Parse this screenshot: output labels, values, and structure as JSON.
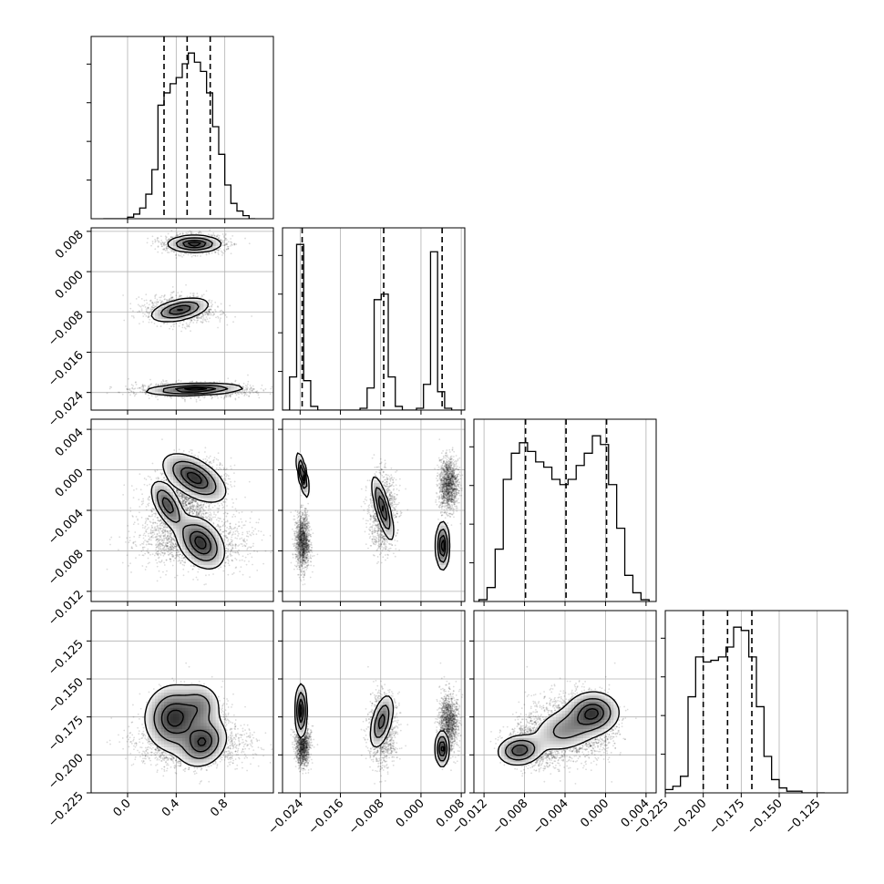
{
  "chart_data": {
    "type": "corner",
    "grid": true,
    "parameters": [
      {
        "range": [
          -0.3,
          1.2
        ],
        "ticks": [
          {
            "v": 0.0,
            "label": "0.0"
          },
          {
            "v": 0.4,
            "label": "0.4"
          },
          {
            "v": 0.8,
            "label": "0.8"
          }
        ],
        "quantiles": [
          0.3,
          0.49,
          0.68
        ]
      },
      {
        "range": [
          -0.0275,
          0.0087
        ],
        "ticks": [
          {
            "v": -0.024,
            "label": "−0.024"
          },
          {
            "v": -0.016,
            "label": "−0.016"
          },
          {
            "v": -0.008,
            "label": "−0.008"
          },
          {
            "v": 0.0,
            "label": "0.000"
          },
          {
            "v": 0.008,
            "label": "0.008"
          }
        ],
        "quantiles": [
          -0.0236,
          -0.0074,
          0.0042
        ]
      },
      {
        "range": [
          -0.013,
          0.005
        ],
        "ticks": [
          {
            "v": -0.012,
            "label": "−0.012"
          },
          {
            "v": -0.008,
            "label": "−0.008"
          },
          {
            "v": -0.004,
            "label": "−0.004"
          },
          {
            "v": 0.0,
            "label": "0.000"
          },
          {
            "v": 0.004,
            "label": "0.004"
          }
        ],
        "quantiles": [
          -0.0079,
          -0.0039,
          0.0001
        ]
      },
      {
        "range": [
          -0.225,
          -0.105
        ],
        "ticks": [
          {
            "v": -0.225,
            "label": "−0.225"
          },
          {
            "v": -0.2,
            "label": "−0.200"
          },
          {
            "v": -0.175,
            "label": "−0.175"
          },
          {
            "v": -0.15,
            "label": "−0.150"
          },
          {
            "v": -0.125,
            "label": "−0.125"
          }
        ],
        "quantiles": [
          -0.2,
          -0.184,
          -0.168
        ]
      }
    ],
    "histograms": [
      {
        "bins": [
          -0.2,
          -0.15,
          -0.1,
          -0.05,
          0.0,
          0.05,
          0.1,
          0.15,
          0.2,
          0.25,
          0.3,
          0.35,
          0.4,
          0.45,
          0.5,
          0.55,
          0.6,
          0.65,
          0.7,
          0.75,
          0.8,
          0.85,
          0.9,
          0.95,
          1.0,
          1.05
        ],
        "counts": [
          0,
          0,
          0,
          0,
          1,
          3,
          7,
          16,
          32,
          74,
          82,
          88,
          92,
          101,
          108,
          102,
          96,
          82,
          60,
          42,
          22,
          10,
          5,
          2,
          0
        ]
      },
      {
        "bins": [
          -0.0275,
          -0.0261,
          -0.0247,
          -0.0233,
          -0.0219,
          -0.0205,
          -0.0191,
          -0.0177,
          -0.0163,
          -0.0149,
          -0.0135,
          -0.0121,
          -0.0107,
          -0.0093,
          -0.0079,
          -0.0065,
          -0.0051,
          -0.0037,
          -0.0023,
          -0.0009,
          0.0005,
          0.0019,
          0.0033,
          0.0047,
          0.0061,
          0.0075,
          0.0087
        ],
        "counts": [
          0,
          18,
          90,
          16,
          2,
          0,
          0,
          0,
          0,
          0,
          0,
          1,
          12,
          60,
          63,
          18,
          2,
          0,
          0,
          1,
          14,
          86,
          10,
          1,
          0,
          0
        ]
      },
      {
        "bins": [
          -0.0125,
          -0.0117,
          -0.0109,
          -0.0101,
          -0.0093,
          -0.0085,
          -0.0077,
          -0.0069,
          -0.0061,
          -0.0053,
          -0.0045,
          -0.0037,
          -0.0029,
          -0.0021,
          -0.0013,
          -0.0005,
          0.0003,
          0.0011,
          0.0019,
          0.0027,
          0.0035,
          0.0043
        ],
        "counts": [
          1,
          8,
          30,
          70,
          85,
          91,
          86,
          80,
          77,
          70,
          67,
          70,
          78,
          85,
          95,
          90,
          67,
          42,
          15,
          5,
          1
        ]
      },
      {
        "bins": [
          -0.225,
          -0.22,
          -0.215,
          -0.21,
          -0.205,
          -0.2,
          -0.195,
          -0.19,
          -0.185,
          -0.18,
          -0.175,
          -0.17,
          -0.165,
          -0.16,
          -0.155,
          -0.15,
          -0.145,
          -0.14,
          -0.135,
          -0.13,
          -0.125,
          -0.12
        ],
        "counts": [
          2,
          4,
          10,
          58,
          82,
          79,
          80,
          82,
          88,
          100,
          98,
          82,
          52,
          22,
          8,
          3,
          1,
          1,
          0,
          0,
          0
        ]
      }
    ],
    "clusters": [
      {
        "p": [
          0.55,
          0.0055,
          -0.0015,
          -0.179
        ],
        "sx": [
          0.11,
          0.0008,
          0.0011,
          0.008
        ],
        "strength": 1.0
      },
      {
        "p": [
          0.43,
          -0.0076,
          -0.0041,
          -0.183
        ],
        "sx": [
          0.12,
          0.0012,
          0.0016,
          0.01
        ],
        "strength": 0.9
      },
      {
        "p": [
          0.55,
          -0.0235,
          -0.0071,
          -0.193
        ],
        "sx": [
          0.2,
          0.0006,
          0.0012,
          0.006
        ],
        "strength": 1.0
      }
    ],
    "panels": [
      {
        "row": 1,
        "col": 0,
        "blobs": [
          {
            "x": 0.55,
            "y": 0.0055,
            "sx": 0.11,
            "sy": 0.00085,
            "rho": 0.0,
            "w": 1.0
          },
          {
            "x": 0.43,
            "y": -0.0076,
            "sx": 0.12,
            "sy": 0.0012,
            "rho": 0.45,
            "w": 0.9
          },
          {
            "x": 0.55,
            "y": -0.0234,
            "sx": 0.2,
            "sy": 0.0006,
            "rho": 0.25,
            "w": 1.0
          }
        ]
      },
      {
        "row": 2,
        "col": 0,
        "blobs": [
          {
            "x": 0.55,
            "y": -0.0008,
            "sx": 0.13,
            "sy": 0.0012,
            "rho": -0.55,
            "w": 1.0
          },
          {
            "x": 0.33,
            "y": -0.0035,
            "sx": 0.07,
            "sy": 0.0012,
            "rho": -0.6,
            "w": 0.85
          },
          {
            "x": 0.6,
            "y": -0.0072,
            "sx": 0.1,
            "sy": 0.0013,
            "rho": -0.35,
            "w": 1.0
          }
        ]
      },
      {
        "row": 2,
        "col": 1,
        "blobs": [
          {
            "x": -0.0235,
            "y": -0.0005,
            "sx": 0.0006,
            "sy": 0.0011,
            "rho": -0.7,
            "w": 1.0
          },
          {
            "x": -0.0076,
            "y": -0.0038,
            "sx": 0.0011,
            "sy": 0.0016,
            "rho": -0.75,
            "w": 0.9
          },
          {
            "x": 0.0043,
            "y": -0.0075,
            "sx": 0.0007,
            "sy": 0.0012,
            "rho": 0.0,
            "w": 1.0
          }
        ]
      },
      {
        "row": 3,
        "col": 0,
        "blobs": [
          {
            "x": 0.38,
            "y": -0.176,
            "sx": 0.12,
            "sy": 0.011,
            "rho": 0.0,
            "w": 1.0
          },
          {
            "x": 0.62,
            "y": -0.192,
            "sx": 0.1,
            "sy": 0.008,
            "rho": 0.2,
            "w": 0.9
          },
          {
            "x": 0.6,
            "y": -0.168,
            "sx": 0.09,
            "sy": 0.008,
            "rho": 0.0,
            "w": 0.5
          }
        ]
      },
      {
        "row": 3,
        "col": 1,
        "blobs": [
          {
            "x": -0.0238,
            "y": -0.171,
            "sx": 0.0006,
            "sy": 0.009,
            "rho": 0.0,
            "w": 1.0
          },
          {
            "x": -0.0078,
            "y": -0.178,
            "sx": 0.0012,
            "sy": 0.009,
            "rho": 0.5,
            "w": 0.8
          },
          {
            "x": 0.0042,
            "y": -0.196,
            "sx": 0.0007,
            "sy": 0.006,
            "rho": 0.0,
            "w": 1.0
          }
        ]
      },
      {
        "row": 3,
        "col": 2,
        "blobs": [
          {
            "x": -0.0085,
            "y": -0.197,
            "sx": 0.0011,
            "sy": 0.005,
            "rho": 0.1,
            "w": 1.0
          },
          {
            "x": -0.0038,
            "y": -0.183,
            "sx": 0.0018,
            "sy": 0.008,
            "rho": 0.3,
            "w": 0.6
          },
          {
            "x": -0.0012,
            "y": -0.172,
            "sx": 0.0013,
            "sy": 0.007,
            "rho": 0.0,
            "w": 1.0
          }
        ]
      }
    ]
  }
}
